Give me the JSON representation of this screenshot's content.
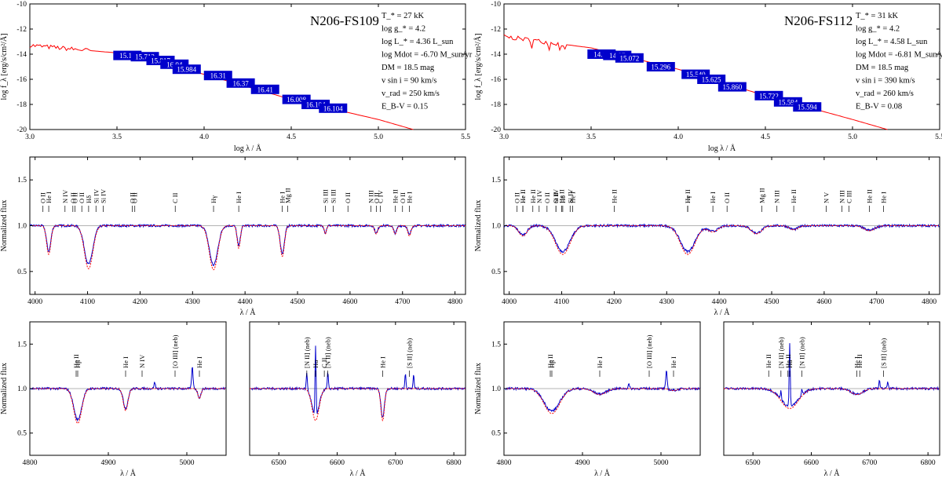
{
  "colors": {
    "observed": "#0000cc",
    "model": "#ff0000",
    "box": "#0000cc",
    "continuum": "#9a9a9a"
  },
  "stars": [
    {
      "name": "N206-FS109",
      "params": [
        "T_* = 27 kK",
        "log g_* = 4.2",
        "log L_* = 4.36 L_sun",
        "log Mdot = -6.70 M_sun/yr",
        "DM = 18.5 mag",
        "v sin i = 90 km/s",
        "v_rad = 250 km/s",
        "E_B-V = 0.15"
      ],
      "sed_labels": [
        "15.15",
        "15.713",
        "15.817",
        "16.04",
        "15.984",
        "16.31",
        "16.37",
        "16.41",
        "16.008",
        "16.104",
        "16.104"
      ],
      "sed_points": [
        [
          3.56,
          -14.1
        ],
        [
          3.66,
          -14.2
        ],
        [
          3.75,
          -14.5
        ],
        [
          3.83,
          -14.8
        ],
        [
          3.9,
          -15.2
        ],
        [
          4.08,
          -15.7
        ],
        [
          4.21,
          -16.3
        ],
        [
          4.35,
          -16.8
        ],
        [
          4.53,
          -17.6
        ],
        [
          4.64,
          -18.0
        ],
        [
          4.74,
          -18.3
        ]
      ],
      "lines_opt": [
        {
          "l": "O II",
          "w": 4015
        },
        {
          "l": "He I",
          "w": 4026
        },
        {
          "l": "N IV",
          "w": 4057
        },
        {
          "l": "O II",
          "w": 4072
        },
        {
          "l": "O II",
          "w": 4076
        },
        {
          "l": "O II",
          "w": 4089
        },
        {
          "l": "Hδ",
          "w": 4102
        },
        {
          "l": "Si IV",
          "w": 4116
        },
        {
          "l": "Si IV",
          "w": 4130
        },
        {
          "l": "O II",
          "w": 4185
        },
        {
          "l": "O II",
          "w": 4190
        },
        {
          "l": "C II",
          "w": 4267
        },
        {
          "l": "Hγ",
          "w": 4340
        },
        {
          "l": "He I",
          "w": 4388
        },
        {
          "l": "He I",
          "w": 4471
        },
        {
          "l": "Mg II",
          "w": 4481
        },
        {
          "l": "Si III",
          "w": 4553
        },
        {
          "l": "Si III",
          "w": 4568
        },
        {
          "l": "O II",
          "w": 4596
        },
        {
          "l": "N III",
          "w": 4640
        },
        {
          "l": "O II",
          "w": 4650
        },
        {
          "l": "C IV",
          "w": 4658
        },
        {
          "l": "He II",
          "w": 4686
        },
        {
          "l": "O II",
          "w": 4700
        },
        {
          "l": "He I",
          "w": 4713
        }
      ],
      "lines_hb": [
        {
          "l": "He II",
          "w": 4859
        },
        {
          "l": "Hβ",
          "w": 4861
        },
        {
          "l": "He I",
          "w": 4922
        },
        {
          "l": "N IV",
          "w": 4943
        },
        {
          "l": "[O III] (neb)",
          "w": 4985
        },
        {
          "l": "He I",
          "w": 5016
        }
      ],
      "lines_ha": [
        {
          "l": "[N II] (neb)",
          "w": 6548
        },
        {
          "l": "Hα",
          "w": 6563
        },
        {
          "l": "[N II] (neb)",
          "w": 6584
        },
        {
          "l": "C II",
          "w": 6578
        },
        {
          "l": "He I",
          "w": 6678
        },
        {
          "l": "[S II] (neb)",
          "w": 6724
        }
      ]
    },
    {
      "name": "N206-FS112",
      "params": [
        "T_* = 31 kK",
        "log g_* = 4.2",
        "log L_* = 4.58 L_sun",
        "log Mdot = -6.81 M_sun/yr",
        "DM = 18.5 mag",
        "v sin i = 390 km/s",
        "v_rad = 260 km/s",
        "E_B-V = 0.08"
      ],
      "sed_labels": [
        "14.14",
        "14.87",
        "15.072",
        "15.296",
        "15.540",
        "15.625",
        "15.860",
        "15.722",
        "15.594",
        "15.594"
      ],
      "sed_points": [
        [
          3.56,
          -14.0
        ],
        [
          3.65,
          -14.1
        ],
        [
          3.72,
          -14.3
        ],
        [
          3.9,
          -15.0
        ],
        [
          4.1,
          -15.6
        ],
        [
          4.19,
          -16.0
        ],
        [
          4.31,
          -16.6
        ],
        [
          4.52,
          -17.3
        ],
        [
          4.63,
          -17.8
        ],
        [
          4.74,
          -18.2
        ]
      ],
      "lines_opt": [
        {
          "l": "O II",
          "w": 4015
        },
        {
          "l": "He I",
          "w": 4026
        },
        {
          "l": "He II",
          "w": 4026
        },
        {
          "l": "He II",
          "w": 4045
        },
        {
          "l": "N IV",
          "w": 4057
        },
        {
          "l": "O II",
          "w": 4072
        },
        {
          "l": "O II",
          "w": 4089
        },
        {
          "l": "Si IV",
          "w": 4089
        },
        {
          "l": "He II",
          "w": 4100
        },
        {
          "l": "Hδ",
          "w": 4102
        },
        {
          "l": "Si IV",
          "w": 4116
        },
        {
          "l": "He I",
          "w": 4121
        },
        {
          "l": "He II",
          "w": 4200
        },
        {
          "l": "He II",
          "w": 4340
        },
        {
          "l": "Hγ",
          "w": 4340
        },
        {
          "l": "He I",
          "w": 4388
        },
        {
          "l": "O II",
          "w": 4415
        },
        {
          "l": "Mg II",
          "w": 4481
        },
        {
          "l": "N III",
          "w": 4510
        },
        {
          "l": "He II",
          "w": 4542
        },
        {
          "l": "N V",
          "w": 4604
        },
        {
          "l": "N III",
          "w": 4634
        },
        {
          "l": "C III",
          "w": 4647
        },
        {
          "l": "He II",
          "w": 4686
        },
        {
          "l": "He I",
          "w": 4713
        }
      ],
      "lines_hb": [
        {
          "l": "He II",
          "w": 4859
        },
        {
          "l": "Hβ",
          "w": 4861
        },
        {
          "l": "He I",
          "w": 4922
        },
        {
          "l": "[O III] (neb)",
          "w": 4985
        },
        {
          "l": "He I",
          "w": 5016
        }
      ],
      "lines_ha": [
        {
          "l": "He II",
          "w": 6527
        },
        {
          "l": "[N II] (neb)",
          "w": 6548
        },
        {
          "l": "He II",
          "w": 6560
        },
        {
          "l": "Hα",
          "w": 6563
        },
        {
          "l": "[N II] (neb)",
          "w": 6584
        },
        {
          "l": "He I",
          "w": 6678
        },
        {
          "l": "He II",
          "w": 6683
        },
        {
          "l": "[S II] (neb)",
          "w": 6724
        }
      ]
    }
  ],
  "axes": {
    "sed_xlabel": "log λ / Å",
    "sed_ylabel": "log f_λ [erg/s/cm²/Å]",
    "sed_xticks": [
      "3.0",
      "3.5",
      "4.0",
      "4.5",
      "5.0",
      "5.5"
    ],
    "sed_yticks": [
      "-10",
      "-12",
      "-14",
      "-16",
      "-18",
      "-20"
    ],
    "norm_ylabel": "Normalized flux",
    "norm_yticks": [
      "1.5",
      "1.0",
      "0.5"
    ],
    "wl_xlabel": "λ / Å",
    "opt_xticks": [
      "4000",
      "4100",
      "4200",
      "4300",
      "4400",
      "4500",
      "4600",
      "4700",
      "4800"
    ],
    "hb_xticks": [
      "4800",
      "4900",
      "5000"
    ],
    "ha_xticks": [
      "6500",
      "6600",
      "6700",
      "6800"
    ]
  },
  "chart_data": [
    {
      "type": "line",
      "title": "N206-FS109",
      "xlabel": "log λ / Å",
      "ylabel": "log f_λ [erg/s/cm²/Å]",
      "xlim": [
        3.0,
        5.5
      ],
      "ylim": [
        -20,
        -10
      ],
      "series": [
        {
          "name": "",
          "x": [
            3.0,
            3.5,
            4.0,
            4.5,
            5.0,
            5.2
          ],
          "y": [
            -13.3,
            -13.9,
            -15.6,
            -17.6,
            -19.2,
            -20.0
          ]
        }
      ]
    },
    {
      "type": "line",
      "title": "N206-FS112",
      "xlabel": "log λ / Å",
      "ylabel": "log f_λ [erg/s/cm²/Å]",
      "xlim": [
        3.0,
        5.5
      ],
      "ylim": [
        -20,
        -10
      ],
      "series": [
        {
          "name": "",
          "x": [
            3.0,
            3.5,
            4.0,
            4.5,
            5.0,
            5.2
          ],
          "y": [
            -12.6,
            -13.5,
            -15.2,
            -17.3,
            -19.2,
            -20.0
          ]
        }
      ]
    },
    {
      "type": "line",
      "xlabel": "λ / Å",
      "ylabel": "Normalized flux",
      "xlim": [
        3990,
        4820
      ],
      "ylim": [
        0.25,
        1.75
      ],
      "star": "N206-FS109",
      "dips": [
        [
          4026,
          0.28,
          4
        ],
        [
          4102,
          0.42,
          8
        ],
        [
          4340,
          0.43,
          8
        ],
        [
          4388,
          0.22,
          3
        ],
        [
          4471,
          0.3,
          4
        ],
        [
          4686,
          0.08,
          3
        ],
        [
          4713,
          0.1,
          3
        ],
        [
          4553,
          0.08,
          2
        ],
        [
          4650,
          0.08,
          3
        ]
      ]
    },
    {
      "type": "line",
      "xlabel": "λ / Å",
      "ylabel": "Normalized flux",
      "xlim": [
        3990,
        4820
      ],
      "ylim": [
        0.25,
        1.75
      ],
      "star": "N206-FS112",
      "dips": [
        [
          4026,
          0.1,
          8
        ],
        [
          4102,
          0.28,
          14
        ],
        [
          4340,
          0.28,
          14
        ],
        [
          4388,
          0.06,
          10
        ],
        [
          4471,
          0.08,
          10
        ],
        [
          4542,
          0.04,
          8
        ],
        [
          4686,
          0.05,
          10
        ]
      ]
    },
    {
      "type": "line",
      "xlabel": "λ / Å",
      "ylabel": "Normalized flux",
      "xlim": [
        4800,
        5050
      ],
      "ylim": [
        0.25,
        1.75
      ],
      "star": "N206-FS109",
      "dips": [
        [
          4861,
          0.35,
          5
        ],
        [
          4922,
          0.22,
          3
        ],
        [
          5016,
          0.1,
          2
        ]
      ],
      "emis": [
        [
          4959,
          0.07
        ],
        [
          5007,
          0.24
        ]
      ]
    },
    {
      "type": "line",
      "xlabel": "λ / Å",
      "ylabel": "Normalized flux",
      "xlim": [
        6450,
        6820
      ],
      "ylim": [
        0.25,
        1.75
      ],
      "star": "N206-FS109",
      "dips": [
        [
          6563,
          0.32,
          6
        ],
        [
          6678,
          0.32,
          3
        ]
      ],
      "emis": [
        [
          6548,
          0.2
        ],
        [
          6563,
          0.8
        ],
        [
          6584,
          0.18
        ],
        [
          6717,
          0.18
        ],
        [
          6731,
          0.16
        ]
      ]
    },
    {
      "type": "line",
      "xlabel": "λ / Å",
      "ylabel": "Normalized flux",
      "xlim": [
        4800,
        5050
      ],
      "ylim": [
        0.25,
        1.75
      ],
      "star": "N206-FS112",
      "dips": [
        [
          4861,
          0.25,
          10
        ],
        [
          4922,
          0.06,
          8
        ],
        [
          5016,
          0.02,
          5
        ]
      ],
      "emis": [
        [
          4959,
          0.05
        ],
        [
          5007,
          0.2
        ]
      ]
    },
    {
      "type": "line",
      "xlabel": "λ / Å",
      "ylabel": "Normalized flux",
      "xlim": [
        6450,
        6820
      ],
      "ylim": [
        0.25,
        1.75
      ],
      "star": "N206-FS112",
      "dips": [
        [
          6563,
          0.2,
          15
        ],
        [
          6678,
          0.06,
          10
        ]
      ],
      "emis": [
        [
          6548,
          0.1
        ],
        [
          6563,
          0.7
        ],
        [
          6584,
          0.07
        ],
        [
          6717,
          0.1
        ],
        [
          6731,
          0.08
        ]
      ]
    }
  ]
}
